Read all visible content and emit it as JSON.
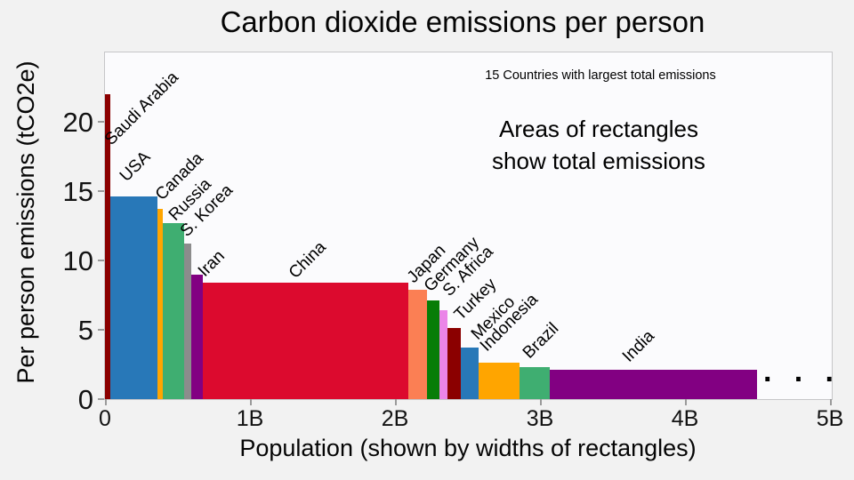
{
  "title": "Carbon dioxide emissions per person",
  "chart_data": {
    "type": "bar",
    "variant": "variable-width-marimekko",
    "title": "Carbon dioxide emissions per person",
    "subtitle": "15 Countries with largest total emissions",
    "note_lines": [
      "Areas of rectangles",
      "show total emissions"
    ],
    "ellipsis": "· · ·",
    "xlabel": "Population (shown by widths of rectangles)",
    "ylabel": "Per person emissions (tCO2e)",
    "xlim_population_billions": [
      0,
      5
    ],
    "ylim_tco2e": [
      0,
      25
    ],
    "x_tick_labels": [
      "0",
      "1B",
      "2B",
      "3B",
      "4B",
      "5B"
    ],
    "y_tick_labels": [
      "0",
      "5",
      "10",
      "15",
      "20"
    ],
    "grid": false,
    "legend": "none",
    "series": [
      {
        "name": "Saudi Arabia",
        "population_billions": 0.037,
        "per_person_tco2e": 22.0,
        "color": "#8B0000"
      },
      {
        "name": "USA",
        "population_billions": 0.325,
        "per_person_tco2e": 14.6,
        "color": "#2878B8"
      },
      {
        "name": "Canada",
        "population_billions": 0.037,
        "per_person_tco2e": 13.7,
        "color": "#FFA500"
      },
      {
        "name": "Russia",
        "population_billions": 0.147,
        "per_person_tco2e": 12.7,
        "color": "#3FAE71"
      },
      {
        "name": "S. Korea",
        "population_billions": 0.049,
        "per_person_tco2e": 11.2,
        "color": "#8C8C8C"
      },
      {
        "name": "Iran",
        "population_billions": 0.08,
        "per_person_tco2e": 9.0,
        "color": "#820082"
      },
      {
        "name": "China",
        "population_billions": 1.42,
        "per_person_tco2e": 8.4,
        "color": "#DC0A2E"
      },
      {
        "name": "Japan",
        "population_billions": 0.128,
        "per_person_tco2e": 7.9,
        "color": "#FB7F54"
      },
      {
        "name": "Germany",
        "population_billions": 0.086,
        "per_person_tco2e": 7.1,
        "color": "#077D07"
      },
      {
        "name": "S. Africa",
        "population_billions": 0.056,
        "per_person_tco2e": 6.4,
        "color": "#EB85E8"
      },
      {
        "name": "Turkey",
        "population_billions": 0.086,
        "per_person_tco2e": 5.1,
        "color": "#8B0000"
      },
      {
        "name": "Mexico",
        "population_billions": 0.128,
        "per_person_tco2e": 3.7,
        "color": "#2878B8"
      },
      {
        "name": "Indonesia",
        "population_billions": 0.28,
        "per_person_tco2e": 2.6,
        "color": "#FFA500"
      },
      {
        "name": "Brazil",
        "population_billions": 0.21,
        "per_person_tco2e": 2.3,
        "color": "#3FAE71"
      },
      {
        "name": "India",
        "population_billions": 1.43,
        "per_person_tco2e": 2.1,
        "color": "#820082"
      }
    ]
  }
}
